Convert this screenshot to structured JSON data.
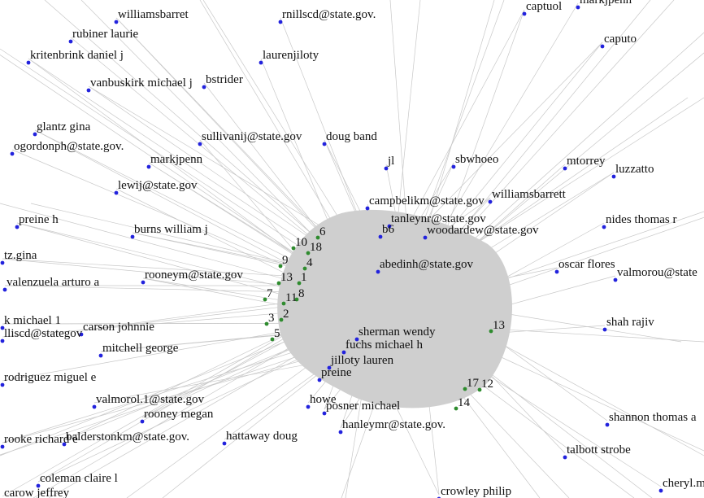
{
  "graph": {
    "colors": {
      "person": "#2222dd",
      "topic": "#2e8b2e",
      "edge": "#c8c8c8"
    },
    "person_labels": [
      "williamsbarret",
      "rnillscd@state.gov.",
      "captuol",
      "markjpenn",
      "caputo",
      "rubiner laurie",
      "kritenbrink daniel j",
      "laurenjiloty",
      "vanbuskirk michael j",
      "bstrider",
      "glantz gina",
      "sullivanij@state.gov",
      "doug band",
      "ogordonph@state.gov.",
      "markjpenn",
      "jl",
      "sbwhoeo",
      "mtorrey",
      "luzzatto",
      "lewij@state.gov",
      "williamsbarrett",
      "campbelikm@state.gov",
      "preine h",
      "nides thomas r",
      "burns william j",
      "tanleynr@state.gov",
      "b6",
      "woodardew@state.gov",
      "tz.gina",
      "oscar flores",
      "rooneym@state.gov",
      "valmorou@state",
      "valenzuela arturo a",
      "abedinh@state.gov",
      "k michael 1",
      "shah rajiv",
      "carson johnnie",
      "lliscd@stategov",
      "mitchell george",
      "fuchs michael h",
      "sherman wendy",
      "rodriguez miguel e",
      "jilloty lauren",
      "valmorol.1@state.gov",
      "rooney megan",
      "preine",
      "hanleymr@state.gov.",
      "shannon thomas a",
      "balderstonkm@state.gov.",
      "hattaway doug",
      "rooke richard e",
      "talbott strobe",
      "coleman claire l",
      "cheryl.m",
      "crowley philip",
      "carow jeffrey",
      "posner michael",
      "howe"
    ],
    "topic_labels": [
      "6",
      "10",
      "18",
      "9",
      "4",
      "13",
      "1",
      "7",
      "11",
      "8",
      "3",
      "2",
      "5",
      "17",
      "12",
      "14",
      "13"
    ]
  }
}
